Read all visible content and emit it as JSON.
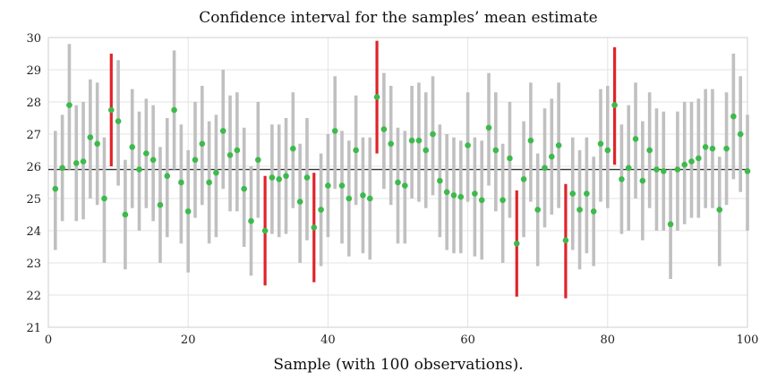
{
  "chart_data": {
    "type": "scatter",
    "title": "Confidence interval for the samples’ mean estimate",
    "xlabel": "Sample (with 100 observations).",
    "ylabel": "",
    "xlim": [
      0,
      100
    ],
    "ylim": [
      21,
      30
    ],
    "xticks": [
      0,
      20,
      40,
      60,
      80,
      100
    ],
    "yticks": [
      21,
      22,
      23,
      24,
      25,
      26,
      27,
      28,
      29,
      30
    ],
    "grid": true,
    "reference_line": 25.9,
    "colors": {
      "interval": "#c0c0c0",
      "interval_missing_mean": "#e0232b",
      "mean_point": "#3cba4b",
      "reference_line": "#333333"
    },
    "series": [
      {
        "x": [
          1,
          2,
          3,
          4,
          5,
          6,
          7,
          8,
          9,
          10,
          11,
          12,
          13,
          14,
          15,
          16,
          17,
          18,
          19,
          20,
          21,
          22,
          23,
          24,
          25,
          26,
          27,
          28,
          29,
          30,
          31,
          32,
          33,
          34,
          35,
          36,
          37,
          38,
          39,
          40,
          41,
          42,
          43,
          44,
          45,
          46,
          47,
          48,
          49,
          50,
          51,
          52,
          53,
          54,
          55,
          56,
          57,
          58,
          59,
          60,
          61,
          62,
          63,
          64,
          65,
          66,
          67,
          68,
          69,
          70,
          71,
          72,
          73,
          74,
          75,
          76,
          77,
          78,
          79,
          80,
          81,
          82,
          83,
          84,
          85,
          86,
          87,
          88,
          89,
          90,
          91,
          92,
          93,
          94,
          95,
          96,
          97,
          98,
          99,
          100
        ],
        "mean": [
          25.3,
          25.95,
          27.9,
          26.1,
          26.15,
          26.9,
          26.7,
          25.0,
          27.75,
          27.4,
          24.5,
          26.6,
          25.9,
          26.4,
          26.2,
          24.8,
          25.7,
          27.75,
          25.5,
          24.6,
          26.2,
          26.7,
          25.5,
          25.8,
          27.1,
          26.35,
          26.5,
          25.3,
          24.3,
          26.2,
          24.0,
          25.65,
          25.6,
          25.7,
          26.55,
          24.9,
          25.65,
          24.1,
          24.65,
          25.4,
          27.1,
          25.4,
          25.0,
          26.5,
          25.1,
          25.0,
          28.15,
          27.15,
          26.7,
          25.5,
          25.4,
          26.8,
          26.8,
          26.5,
          27.0,
          25.55,
          25.2,
          25.1,
          25.05,
          26.65,
          25.15,
          24.95,
          27.2,
          26.5,
          24.95,
          26.25,
          23.6,
          25.6,
          26.8,
          24.65,
          25.95,
          26.3,
          26.65,
          23.7,
          25.15,
          24.65,
          25.15,
          24.6,
          26.7,
          26.5,
          27.9,
          25.6,
          25.95,
          26.85,
          25.55,
          26.5,
          25.9,
          25.85,
          24.2,
          25.9,
          26.05,
          26.15,
          26.25,
          26.6,
          26.55,
          24.65,
          26.55,
          27.55,
          27.0,
          25.85
        ],
        "low": [
          23.4,
          24.3,
          25.9,
          24.3,
          24.35,
          25.0,
          24.8,
          23.0,
          26.0,
          25.4,
          22.8,
          24.7,
          24.0,
          24.7,
          24.3,
          23.0,
          23.8,
          25.9,
          23.6,
          22.7,
          24.4,
          24.8,
          23.6,
          23.8,
          25.3,
          24.6,
          24.6,
          23.5,
          22.6,
          24.4,
          22.3,
          23.9,
          23.8,
          23.9,
          24.7,
          23.0,
          23.7,
          22.4,
          22.9,
          23.8,
          25.3,
          23.6,
          23.2,
          24.8,
          23.3,
          23.1,
          26.4,
          25.3,
          24.8,
          23.6,
          23.6,
          25.0,
          24.9,
          24.7,
          25.1,
          23.8,
          23.4,
          23.3,
          23.3,
          24.9,
          23.2,
          23.1,
          25.4,
          24.6,
          23.0,
          24.4,
          21.95,
          23.8,
          24.9,
          22.9,
          24.1,
          24.5,
          24.7,
          21.9,
          23.4,
          22.8,
          23.3,
          22.9,
          24.9,
          24.7,
          26.05,
          23.9,
          24.0,
          25.0,
          23.7,
          24.7,
          24.0,
          24.0,
          22.5,
          24.0,
          24.2,
          24.4,
          24.4,
          24.7,
          24.7,
          22.9,
          24.8,
          25.6,
          25.2,
          24.0
        ],
        "high": [
          27.1,
          27.6,
          29.8,
          27.9,
          28.0,
          28.7,
          28.6,
          26.9,
          29.5,
          29.3,
          26.2,
          28.4,
          27.7,
          28.1,
          27.9,
          26.6,
          27.5,
          29.6,
          27.3,
          26.5,
          28.0,
          28.5,
          27.4,
          27.6,
          29.0,
          28.2,
          28.3,
          27.2,
          26.0,
          28.0,
          25.7,
          27.3,
          27.3,
          27.5,
          28.3,
          26.7,
          27.5,
          25.8,
          26.4,
          27.0,
          28.8,
          27.1,
          26.8,
          28.2,
          26.9,
          26.9,
          29.9,
          28.9,
          28.5,
          27.2,
          27.1,
          28.5,
          28.6,
          28.3,
          28.8,
          27.3,
          27.0,
          26.9,
          26.8,
          28.3,
          26.9,
          26.8,
          28.9,
          28.3,
          26.7,
          28.0,
          25.25,
          27.4,
          28.6,
          26.4,
          27.8,
          28.1,
          28.6,
          25.45,
          26.9,
          26.5,
          26.9,
          26.3,
          28.4,
          28.5,
          29.7,
          27.3,
          27.9,
          28.6,
          27.4,
          28.3,
          27.8,
          27.7,
          25.9,
          27.7,
          28.0,
          28.0,
          28.1,
          28.4,
          28.4,
          26.3,
          28.3,
          29.5,
          28.8,
          27.6
        ]
      }
    ]
  }
}
